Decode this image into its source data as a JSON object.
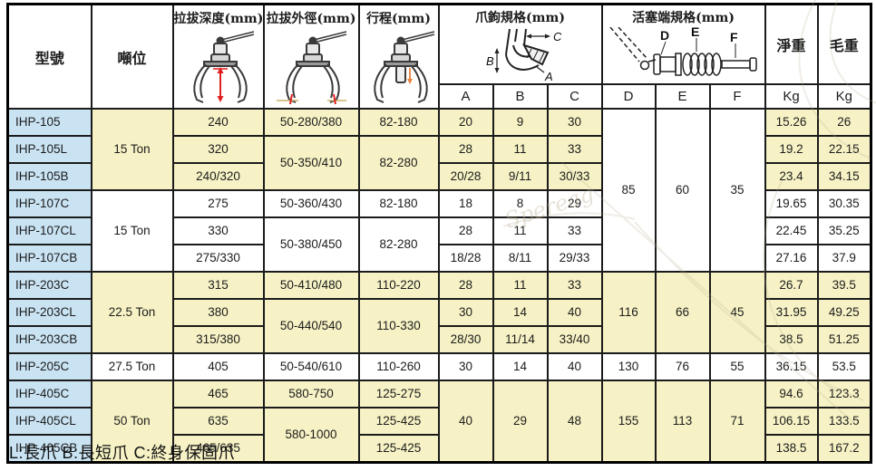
{
  "table": {
    "headers": {
      "model": "型號",
      "tonnage": "噸位",
      "depth": "拉拔深度(mm)",
      "outer": "拉拔外徑(mm)",
      "stroke": "行程(mm)",
      "jaw": "爪鉤規格(mm)",
      "piston": "活塞端規格(mm)",
      "net": "淨重",
      "gross": "毛重",
      "sub": [
        "A",
        "B",
        "C",
        "D",
        "E",
        "F",
        "Kg",
        "Kg"
      ]
    },
    "rows": [
      [
        {
          "t": "IHP-105",
          "bg": "b",
          "left": true
        },
        {
          "t": "15 Ton",
          "bg": "y",
          "rs": 3
        },
        {
          "t": "240",
          "bg": "y"
        },
        {
          "t": "50-280/380",
          "bg": "y"
        },
        {
          "t": "82-180",
          "bg": "y"
        },
        {
          "t": "20",
          "bg": "y"
        },
        {
          "t": "9",
          "bg": "y"
        },
        {
          "t": "30",
          "bg": "y"
        },
        {
          "t": "85",
          "bg": "w",
          "rs": 6
        },
        {
          "t": "60",
          "bg": "w",
          "rs": 6
        },
        {
          "t": "35",
          "bg": "w",
          "rs": 6
        },
        {
          "t": "15.26",
          "bg": "y"
        },
        {
          "t": "26",
          "bg": "y"
        }
      ],
      [
        {
          "t": "IHP-105L",
          "bg": "b",
          "left": true
        },
        {
          "t": "320",
          "bg": "y"
        },
        {
          "t": "50-350/410",
          "bg": "y",
          "rs": 2
        },
        {
          "t": "82-280",
          "bg": "y",
          "rs": 2
        },
        {
          "t": "28",
          "bg": "y"
        },
        {
          "t": "11",
          "bg": "y"
        },
        {
          "t": "33",
          "bg": "y"
        },
        {
          "t": "19.2",
          "bg": "y"
        },
        {
          "t": "22.15",
          "bg": "y"
        }
      ],
      [
        {
          "t": "IHP-105B",
          "bg": "b",
          "left": true
        },
        {
          "t": "240/320",
          "bg": "y"
        },
        {
          "t": "20/28",
          "bg": "y"
        },
        {
          "t": "9/11",
          "bg": "y"
        },
        {
          "t": "30/33",
          "bg": "y"
        },
        {
          "t": "23.4",
          "bg": "y"
        },
        {
          "t": "34.15",
          "bg": "y"
        }
      ],
      [
        {
          "t": "IHP-107C",
          "bg": "b",
          "left": true
        },
        {
          "t": "15 Ton",
          "bg": "w",
          "rs": 3
        },
        {
          "t": "275",
          "bg": "w"
        },
        {
          "t": "50-360/430",
          "bg": "w"
        },
        {
          "t": "82-180",
          "bg": "w"
        },
        {
          "t": "18",
          "bg": "w"
        },
        {
          "t": "8",
          "bg": "w"
        },
        {
          "t": "29",
          "bg": "w"
        },
        {
          "t": "19.65",
          "bg": "w"
        },
        {
          "t": "30.35",
          "bg": "w"
        }
      ],
      [
        {
          "t": "IHP-107CL",
          "bg": "b",
          "left": true
        },
        {
          "t": "330",
          "bg": "w"
        },
        {
          "t": "50-380/450",
          "bg": "w",
          "rs": 2
        },
        {
          "t": "82-280",
          "bg": "w",
          "rs": 2
        },
        {
          "t": "28",
          "bg": "w"
        },
        {
          "t": "11",
          "bg": "w"
        },
        {
          "t": "33",
          "bg": "w"
        },
        {
          "t": "22.45",
          "bg": "w"
        },
        {
          "t": "35.25",
          "bg": "w"
        }
      ],
      [
        {
          "t": "IHP-107CB",
          "bg": "b",
          "left": true
        },
        {
          "t": "275/330",
          "bg": "w"
        },
        {
          "t": "18/28",
          "bg": "w"
        },
        {
          "t": "8/11",
          "bg": "w"
        },
        {
          "t": "29/33",
          "bg": "w"
        },
        {
          "t": "27.16",
          "bg": "w"
        },
        {
          "t": "37.9",
          "bg": "w"
        }
      ],
      [
        {
          "t": "IHP-203C",
          "bg": "b",
          "left": true
        },
        {
          "t": "22.5 Ton",
          "bg": "y",
          "rs": 3
        },
        {
          "t": "315",
          "bg": "y"
        },
        {
          "t": "50-410/480",
          "bg": "y"
        },
        {
          "t": "110-220",
          "bg": "y"
        },
        {
          "t": "28",
          "bg": "y"
        },
        {
          "t": "11",
          "bg": "y"
        },
        {
          "t": "33",
          "bg": "y"
        },
        {
          "t": "116",
          "bg": "y",
          "rs": 3
        },
        {
          "t": "66",
          "bg": "y",
          "rs": 3
        },
        {
          "t": "45",
          "bg": "y",
          "rs": 3
        },
        {
          "t": "26.7",
          "bg": "y"
        },
        {
          "t": "39.5",
          "bg": "y"
        }
      ],
      [
        {
          "t": "IHP-203CL",
          "bg": "b",
          "left": true
        },
        {
          "t": "380",
          "bg": "y"
        },
        {
          "t": "50-440/540",
          "bg": "y",
          "rs": 2
        },
        {
          "t": "110-330",
          "bg": "y",
          "rs": 2
        },
        {
          "t": "30",
          "bg": "y"
        },
        {
          "t": "14",
          "bg": "y"
        },
        {
          "t": "40",
          "bg": "y"
        },
        {
          "t": "31.95",
          "bg": "y"
        },
        {
          "t": "49.25",
          "bg": "y"
        }
      ],
      [
        {
          "t": "IHP-203CB",
          "bg": "b",
          "left": true
        },
        {
          "t": "315/380",
          "bg": "y"
        },
        {
          "t": "28/30",
          "bg": "y"
        },
        {
          "t": "11/14",
          "bg": "y"
        },
        {
          "t": "33/40",
          "bg": "y"
        },
        {
          "t": "38.5",
          "bg": "y"
        },
        {
          "t": "51.25",
          "bg": "y"
        }
      ],
      [
        {
          "t": "IHP-205C",
          "bg": "b",
          "left": true
        },
        {
          "t": "27.5 Ton",
          "bg": "w"
        },
        {
          "t": "405",
          "bg": "w"
        },
        {
          "t": "50-540/610",
          "bg": "w"
        },
        {
          "t": "110-260",
          "bg": "w"
        },
        {
          "t": "30",
          "bg": "w"
        },
        {
          "t": "14",
          "bg": "w"
        },
        {
          "t": "40",
          "bg": "w"
        },
        {
          "t": "130",
          "bg": "w"
        },
        {
          "t": "76",
          "bg": "w"
        },
        {
          "t": "55",
          "bg": "w"
        },
        {
          "t": "36.15",
          "bg": "w"
        },
        {
          "t": "53.5",
          "bg": "w"
        }
      ],
      [
        {
          "t": "IHP-405C",
          "bg": "b",
          "left": true
        },
        {
          "t": "50 Ton",
          "bg": "y",
          "rs": 3
        },
        {
          "t": "465",
          "bg": "y"
        },
        {
          "t": "580-750",
          "bg": "y"
        },
        {
          "t": "125-275",
          "bg": "y"
        },
        {
          "t": "40",
          "bg": "y",
          "rs": 3
        },
        {
          "t": "29",
          "bg": "y",
          "rs": 3
        },
        {
          "t": "48",
          "bg": "y",
          "rs": 3
        },
        {
          "t": "155",
          "bg": "y",
          "rs": 3
        },
        {
          "t": "113",
          "bg": "y",
          "rs": 3
        },
        {
          "t": "71",
          "bg": "y",
          "rs": 3
        },
        {
          "t": "94.6",
          "bg": "y"
        },
        {
          "t": "123.3",
          "bg": "y"
        }
      ],
      [
        {
          "t": "IHP-405CL",
          "bg": "b",
          "left": true
        },
        {
          "t": "635",
          "bg": "y"
        },
        {
          "t": "580-1000",
          "bg": "y",
          "rs": 2
        },
        {
          "t": "125-425",
          "bg": "y"
        },
        {
          "t": "106.15",
          "bg": "y"
        },
        {
          "t": "133.5",
          "bg": "y"
        }
      ],
      [
        {
          "t": "IHP-405CB",
          "bg": "b",
          "left": true
        },
        {
          "t": "465/635",
          "bg": "y"
        },
        {
          "t": "125-425",
          "bg": "y"
        },
        {
          "t": "138.5",
          "bg": "y"
        },
        {
          "t": "167.2",
          "bg": "y"
        }
      ]
    ]
  },
  "diagram_labels": {
    "a": "A",
    "b": "B",
    "c": "C",
    "d": "D",
    "e": "E",
    "f": "F"
  },
  "footer": {
    "note": "L:長爪 B:長短爪 C:終身保固爪"
  },
  "watermark": {
    "text": "Spereag"
  },
  "colors": {
    "model_bg": "#c9e3f3",
    "band_bg": "#f6f2c5",
    "white_bg": "#ffffff",
    "border": "#1b1b1b",
    "dimension_red": "#e02020",
    "watermark_tan": "#b9ae92"
  }
}
